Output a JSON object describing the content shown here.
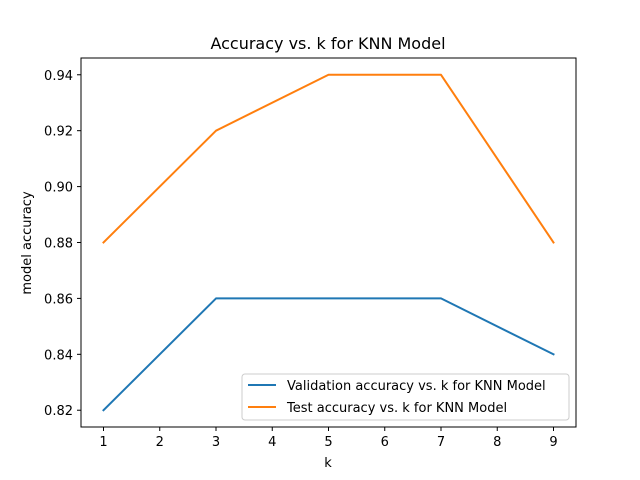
{
  "chart_data": {
    "type": "line",
    "title": "Accuracy vs. k for KNN Model",
    "xlabel": "k",
    "ylabel": "model accuracy",
    "x": [
      1,
      3,
      5,
      7,
      9
    ],
    "xlim": [
      0.6,
      9.4
    ],
    "ylim": [
      0.814,
      0.946
    ],
    "xticks": [
      1,
      2,
      3,
      4,
      5,
      6,
      7,
      8,
      9
    ],
    "yticks": [
      0.82,
      0.84,
      0.86,
      0.88,
      0.9,
      0.92,
      0.94
    ],
    "xtick_labels": [
      "1",
      "2",
      "3",
      "4",
      "5",
      "6",
      "7",
      "8",
      "9"
    ],
    "ytick_labels": [
      "0.82",
      "0.84",
      "0.86",
      "0.88",
      "0.90",
      "0.92",
      "0.94"
    ],
    "series": [
      {
        "name": "Validation accuracy vs. k for KNN Model",
        "color": "#1f77b4",
        "values": [
          0.82,
          0.86,
          0.86,
          0.86,
          0.84
        ]
      },
      {
        "name": "Test accuracy vs. k for KNN Model",
        "color": "#ff7f0e",
        "values": [
          0.88,
          0.92,
          0.94,
          0.94,
          0.88
        ]
      }
    ],
    "grid": false,
    "legend_position": "lower right"
  }
}
